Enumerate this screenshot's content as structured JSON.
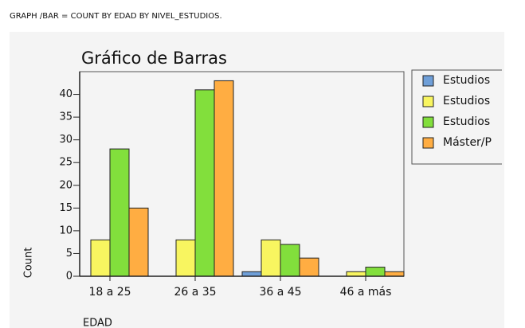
{
  "header": "GRAPH /BAR = COUNT BY EDAD BY NIVEL_ESTUDIOS.",
  "chart_data": {
    "type": "bar",
    "title": "Gráfico de Barras",
    "x_label": "EDAD",
    "y_label": "Count",
    "categories": [
      "18 a 25",
      "26 a 35",
      "36 a 45",
      "46 a más"
    ],
    "series": [
      {
        "name": "Estudios",
        "color": "#6f9fd8",
        "values": [
          0,
          0,
          1,
          0
        ]
      },
      {
        "name": "Estudios",
        "color": "#f8f560",
        "values": [
          8,
          8,
          8,
          1
        ]
      },
      {
        "name": "Estudios",
        "color": "#82df3c",
        "values": [
          28,
          41,
          7,
          2
        ]
      },
      {
        "name": "Máster/P",
        "color": "#ffad42",
        "values": [
          15,
          43,
          4,
          1
        ]
      }
    ],
    "ylim": [
      0,
      45
    ],
    "yticks": [
      0,
      5,
      10,
      15,
      20,
      25,
      30,
      35,
      40
    ],
    "legend": "right"
  }
}
